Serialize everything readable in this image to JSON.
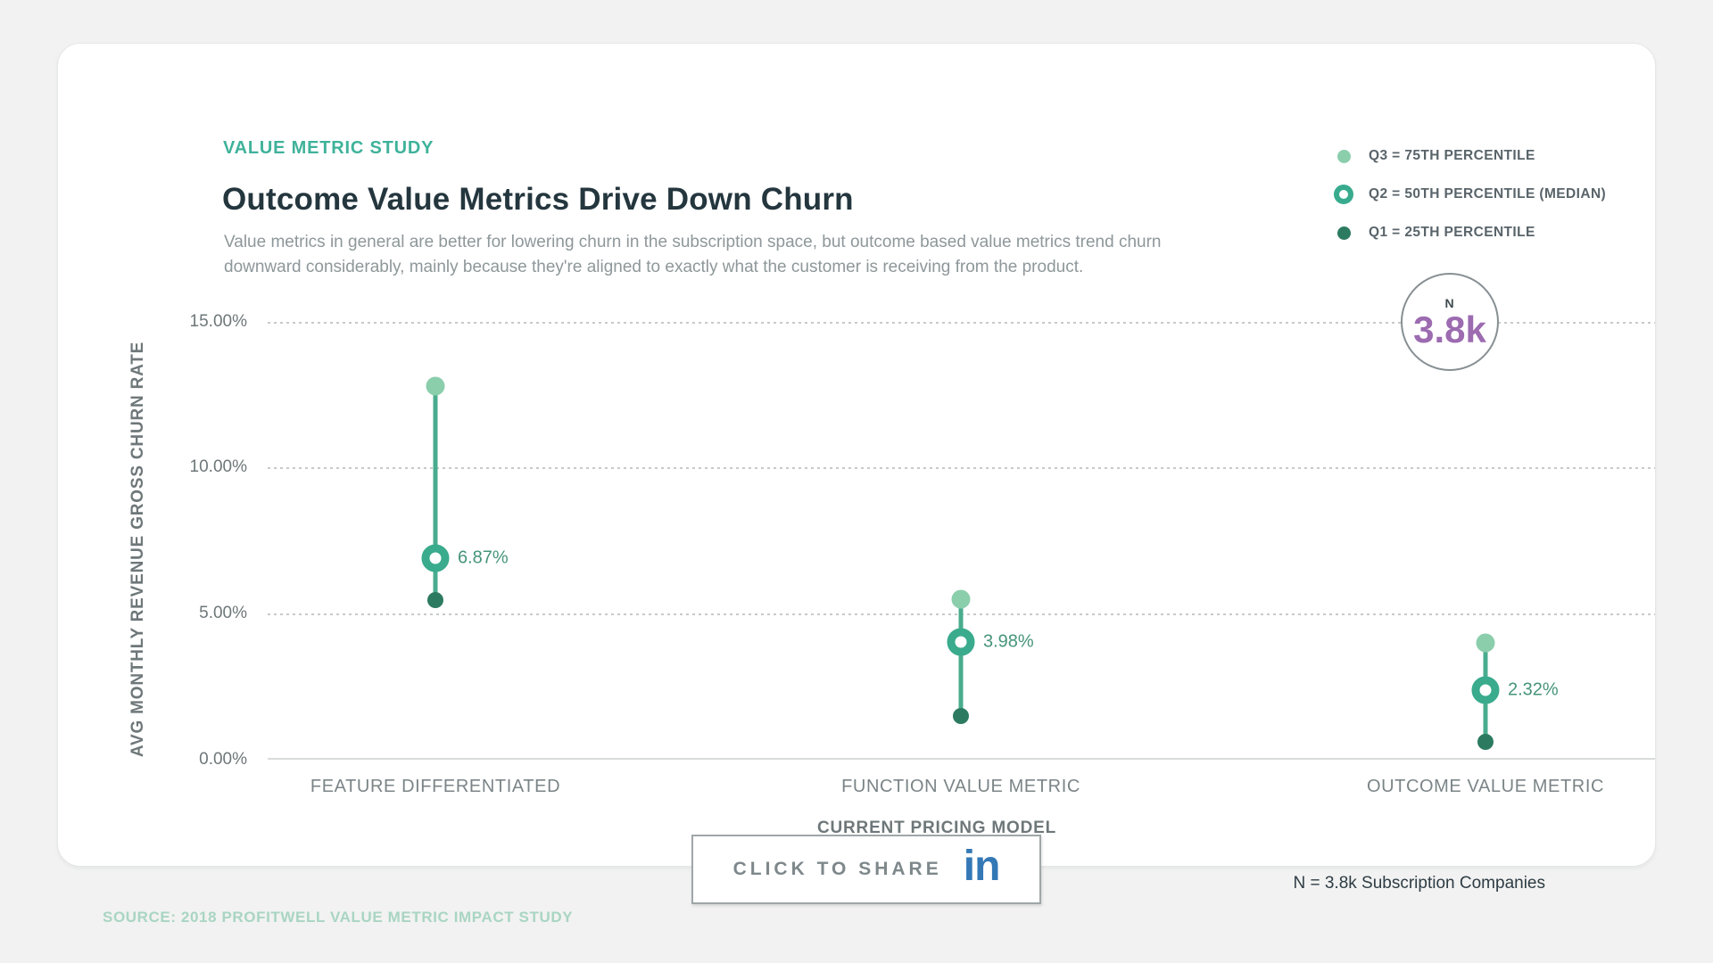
{
  "header": {
    "eyebrow": "VALUE METRIC STUDY",
    "title": "Outcome Value Metrics Drive Down Churn",
    "subtitle": "Value metrics in general are better for lowering churn in the subscription space, but outcome based value metrics trend churn downward considerably, mainly because they're aligned to exactly what the customer is receiving from the product."
  },
  "legend": {
    "items": [
      {
        "label": "Q3 = 75TH PERCENTILE",
        "marker": "filled-dot",
        "color": "#8bceac"
      },
      {
        "label": "Q2 = 50TH PERCENTILE (MEDIAN)",
        "marker": "ring",
        "color": "#38ab8e"
      },
      {
        "label": "Q1 = 25TH PERCENTILE",
        "marker": "filled-dot",
        "color": "#2c7b60"
      }
    ]
  },
  "sample_badge": {
    "prefix": "N",
    "value": "3.8k",
    "value_color": "#9c6bb0"
  },
  "chart_data": {
    "type": "dumbbell-range",
    "title": "Outcome Value Metrics Drive Down Churn",
    "xlabel": "CURRENT PRICING MODEL",
    "ylabel": "AVG MONTHLY REVENUE GROSS CHURN RATE",
    "ylim": [
      0,
      15
    ],
    "y_ticks": [
      "15.00%",
      "10.00%",
      "5.00%",
      "0.00%"
    ],
    "grid": "dotted horizontal gridlines at 5/10/15, solid baseline at 0",
    "legend_position": "top-right",
    "categories": [
      "FEATURE DIFFERENTIATED",
      "FUNCTION VALUE METRIC",
      "OUTCOME VALUE METRIC"
    ],
    "series": [
      {
        "name": "Q3 = 75th percentile",
        "values": [
          12.8,
          5.45,
          3.95
        ]
      },
      {
        "name": "Q2 = 50th percentile (median)",
        "values": [
          6.87,
          3.98,
          2.32
        ],
        "labels": [
          "6.87%",
          "3.98%",
          "2.32%"
        ]
      },
      {
        "name": "Q1 = 25th percentile",
        "values": [
          5.43,
          1.45,
          0.55
        ]
      }
    ]
  },
  "footer": {
    "share_label": "CLICK TO SHARE",
    "linkedin_icon": "in",
    "sample_note": "N = 3.8k Subscription Companies",
    "source": "SOURCE: 2018 PROFITWELL VALUE METRIC IMPACT STUDY"
  },
  "colors": {
    "accent_teal": "#3fb29a",
    "title_dark": "#24363e",
    "body_gray": "#8e979a",
    "axis_gray": "#6e7779",
    "q3_light_green": "#8bceac",
    "q2_teal": "#38ab8e",
    "q1_dark_green": "#2c7b60",
    "range_line": "#49ac8e",
    "median_label_green": "#46947b",
    "sample_purple": "#9c6bb0",
    "linkedin_blue": "#3478b6",
    "source_mint": "#a9d5c3",
    "page_background": "#f1f2f1"
  }
}
